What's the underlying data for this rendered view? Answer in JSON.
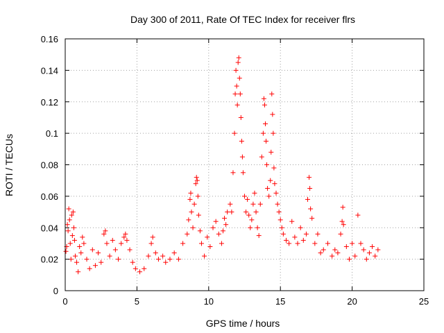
{
  "chart_data": {
    "type": "scatter",
    "title": "Day 300 of 2011, Rate Of TEC Index for receiver flrs",
    "xlabel": "GPS time / hours",
    "ylabel": "ROTI / TECUs",
    "xlim": [
      0,
      25
    ],
    "ylim": [
      0,
      0.16
    ],
    "x_ticks": [
      0,
      5,
      10,
      15,
      20,
      25
    ],
    "y_ticks": [
      0,
      0.02,
      0.04,
      0.06,
      0.08,
      0.1,
      0.12,
      0.14,
      0.16
    ],
    "x_tick_labels": [
      "0",
      "5",
      "10",
      "15",
      "20",
      "25"
    ],
    "y_tick_labels": [
      "0",
      "0.02",
      "0.04",
      "0.06",
      "0.08",
      "0.1",
      "0.12",
      "0.14",
      "0.16"
    ],
    "grid": true,
    "marker": "+",
    "color": "#ff0000",
    "series": [
      {
        "name": "ROTI",
        "points": [
          [
            0.05,
            0.025
          ],
          [
            0.1,
            0.028
          ],
          [
            0.15,
            0.042
          ],
          [
            0.2,
            0.038
          ],
          [
            0.25,
            0.052
          ],
          [
            0.3,
            0.045
          ],
          [
            0.35,
            0.03
          ],
          [
            0.4,
            0.02
          ],
          [
            0.45,
            0.048
          ],
          [
            0.5,
            0.035
          ],
          [
            0.55,
            0.05
          ],
          [
            0.6,
            0.04
          ],
          [
            0.65,
            0.032
          ],
          [
            0.7,
            0.022
          ],
          [
            0.8,
            0.018
          ],
          [
            0.9,
            0.012
          ],
          [
            1.0,
            0.028
          ],
          [
            1.1,
            0.024
          ],
          [
            1.2,
            0.034
          ],
          [
            1.3,
            0.03
          ],
          [
            1.5,
            0.02
          ],
          [
            1.7,
            0.014
          ],
          [
            1.9,
            0.026
          ],
          [
            2.1,
            0.016
          ],
          [
            2.3,
            0.024
          ],
          [
            2.5,
            0.018
          ],
          [
            2.7,
            0.036
          ],
          [
            2.8,
            0.038
          ],
          [
            2.9,
            0.03
          ],
          [
            3.1,
            0.022
          ],
          [
            3.3,
            0.032
          ],
          [
            3.5,
            0.026
          ],
          [
            3.7,
            0.02
          ],
          [
            3.9,
            0.03
          ],
          [
            4.1,
            0.034
          ],
          [
            4.2,
            0.036
          ],
          [
            4.3,
            0.032
          ],
          [
            4.5,
            0.026
          ],
          [
            4.7,
            0.018
          ],
          [
            4.9,
            0.014
          ],
          [
            5.2,
            0.012
          ],
          [
            5.5,
            0.014
          ],
          [
            5.8,
            0.022
          ],
          [
            6.0,
            0.03
          ],
          [
            6.1,
            0.034
          ],
          [
            6.3,
            0.024
          ],
          [
            6.5,
            0.02
          ],
          [
            6.8,
            0.022
          ],
          [
            7.0,
            0.018
          ],
          [
            7.3,
            0.02
          ],
          [
            7.6,
            0.024
          ],
          [
            7.9,
            0.02
          ],
          [
            8.2,
            0.03
          ],
          [
            8.5,
            0.036
          ],
          [
            8.6,
            0.045
          ],
          [
            8.7,
            0.058
          ],
          [
            8.75,
            0.062
          ],
          [
            8.8,
            0.05
          ],
          [
            8.9,
            0.04
          ],
          [
            9.0,
            0.055
          ],
          [
            9.1,
            0.068
          ],
          [
            9.15,
            0.072
          ],
          [
            9.2,
            0.07
          ],
          [
            9.25,
            0.06
          ],
          [
            9.3,
            0.048
          ],
          [
            9.4,
            0.038
          ],
          [
            9.5,
            0.03
          ],
          [
            9.7,
            0.022
          ],
          [
            9.9,
            0.034
          ],
          [
            10.1,
            0.028
          ],
          [
            10.3,
            0.04
          ],
          [
            10.5,
            0.044
          ],
          [
            10.7,
            0.036
          ],
          [
            10.9,
            0.03
          ],
          [
            11.0,
            0.038
          ],
          [
            11.1,
            0.046
          ],
          [
            11.2,
            0.042
          ],
          [
            11.3,
            0.05
          ],
          [
            11.5,
            0.055
          ],
          [
            11.6,
            0.05
          ],
          [
            11.7,
            0.075
          ],
          [
            11.8,
            0.1
          ],
          [
            11.85,
            0.125
          ],
          [
            11.9,
            0.14
          ],
          [
            11.95,
            0.13
          ],
          [
            12.0,
            0.118
          ],
          [
            12.05,
            0.145
          ],
          [
            12.1,
            0.148
          ],
          [
            12.15,
            0.135
          ],
          [
            12.2,
            0.125
          ],
          [
            12.25,
            0.11
          ],
          [
            12.3,
            0.095
          ],
          [
            12.35,
            0.085
          ],
          [
            12.4,
            0.075
          ],
          [
            12.5,
            0.06
          ],
          [
            12.6,
            0.05
          ],
          [
            12.7,
            0.058
          ],
          [
            12.8,
            0.048
          ],
          [
            12.9,
            0.04
          ],
          [
            13.0,
            0.045
          ],
          [
            13.1,
            0.055
          ],
          [
            13.2,
            0.062
          ],
          [
            13.3,
            0.05
          ],
          [
            13.4,
            0.04
          ],
          [
            13.5,
            0.035
          ],
          [
            13.6,
            0.055
          ],
          [
            13.7,
            0.085
          ],
          [
            13.8,
            0.1
          ],
          [
            13.85,
            0.122
          ],
          [
            13.9,
            0.118
          ],
          [
            13.95,
            0.106
          ],
          [
            14.0,
            0.095
          ],
          [
            14.05,
            0.08
          ],
          [
            14.1,
            0.065
          ],
          [
            14.2,
            0.06
          ],
          [
            14.3,
            0.07
          ],
          [
            14.35,
            0.088
          ],
          [
            14.4,
            0.125
          ],
          [
            14.45,
            0.112
          ],
          [
            14.5,
            0.1
          ],
          [
            14.55,
            0.078
          ],
          [
            14.6,
            0.068
          ],
          [
            14.7,
            0.062
          ],
          [
            14.8,
            0.055
          ],
          [
            14.9,
            0.05
          ],
          [
            15.0,
            0.045
          ],
          [
            15.1,
            0.04
          ],
          [
            15.2,
            0.036
          ],
          [
            15.4,
            0.032
          ],
          [
            15.6,
            0.03
          ],
          [
            15.8,
            0.044
          ],
          [
            16.0,
            0.034
          ],
          [
            16.2,
            0.03
          ],
          [
            16.4,
            0.04
          ],
          [
            16.6,
            0.032
          ],
          [
            16.8,
            0.036
          ],
          [
            16.9,
            0.058
          ],
          [
            17.0,
            0.072
          ],
          [
            17.05,
            0.065
          ],
          [
            17.1,
            0.052
          ],
          [
            17.2,
            0.046
          ],
          [
            17.4,
            0.03
          ],
          [
            17.6,
            0.036
          ],
          [
            17.8,
            0.024
          ],
          [
            18.0,
            0.026
          ],
          [
            18.3,
            0.03
          ],
          [
            18.6,
            0.022
          ],
          [
            18.8,
            0.026
          ],
          [
            19.0,
            0.024
          ],
          [
            19.2,
            0.036
          ],
          [
            19.3,
            0.044
          ],
          [
            19.35,
            0.053
          ],
          [
            19.4,
            0.042
          ],
          [
            19.6,
            0.028
          ],
          [
            19.8,
            0.02
          ],
          [
            20.0,
            0.03
          ],
          [
            20.2,
            0.022
          ],
          [
            20.4,
            0.048
          ],
          [
            20.6,
            0.03
          ],
          [
            20.8,
            0.026
          ],
          [
            21.0,
            0.02
          ],
          [
            21.2,
            0.024
          ],
          [
            21.4,
            0.028
          ],
          [
            21.6,
            0.022
          ],
          [
            21.8,
            0.026
          ]
        ]
      }
    ]
  }
}
